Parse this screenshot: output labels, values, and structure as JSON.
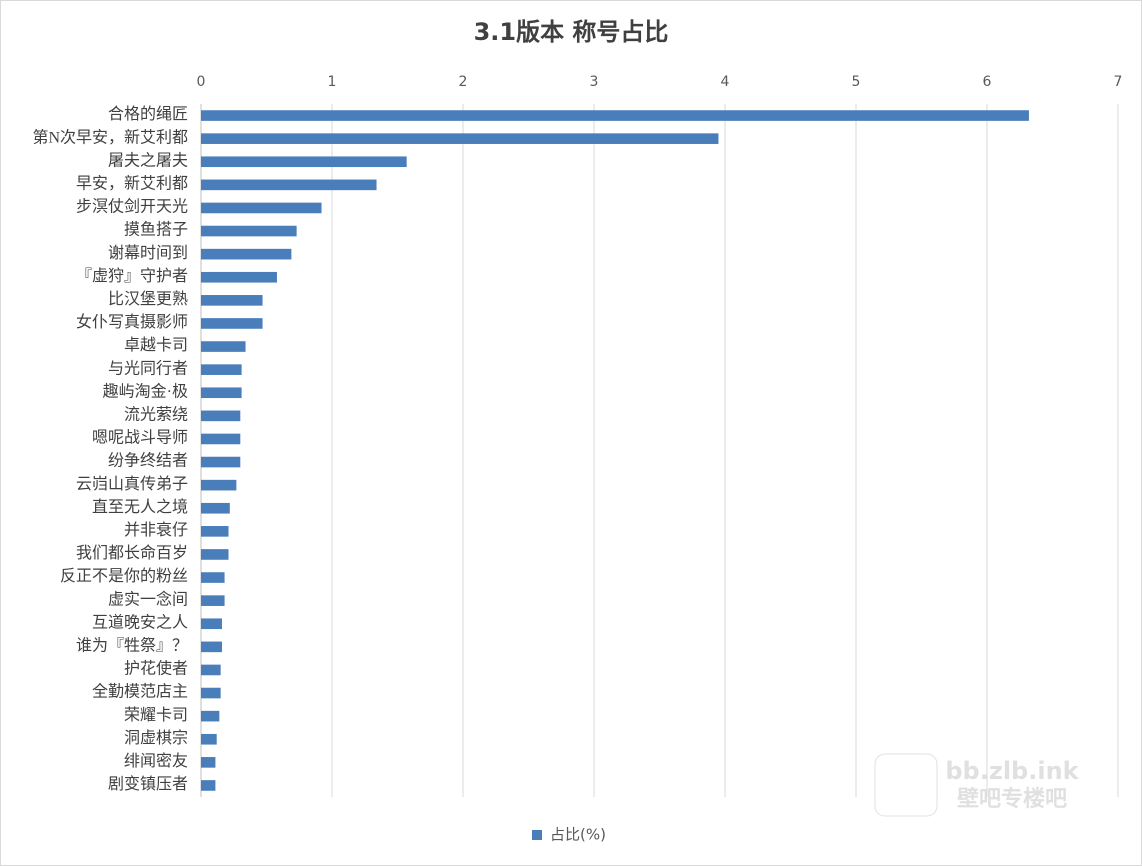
{
  "chart_data": {
    "type": "bar",
    "orientation": "horizontal",
    "title": "3.1版本 称号占比",
    "categories": [
      "合格的绳匠",
      "第N次早安，新艾利都",
      "屠夫之屠夫",
      "早安，新艾利都",
      "步溟仗剑开天光",
      "摸鱼搭子",
      "谢幕时间到",
      "『虚狩』守护者",
      "比汉堡更熟",
      "女仆写真摄影师",
      "卓越卡司",
      "与光同行者",
      "趣屿淘金·极",
      "流光萦绕",
      "嗯呢战斗导师",
      "纷争终结者",
      "云岿山真传弟子",
      "直至无人之境",
      "并非衰仔",
      "我们都长命百岁",
      "反正不是你的粉丝",
      "虚实一念间",
      "互道晚安之人",
      "谁为『牲祭』？",
      "护花使者",
      "全勤模范店主",
      "荣耀卡司",
      "洞虚棋宗",
      "绯闻密友",
      "剧变镇压者"
    ],
    "series": [
      {
        "name": "占比(%)",
        "color": "#4a7ebb",
        "values": [
          6.32,
          3.95,
          1.57,
          1.34,
          0.92,
          0.73,
          0.69,
          0.58,
          0.47,
          0.47,
          0.34,
          0.31,
          0.31,
          0.3,
          0.3,
          0.3,
          0.27,
          0.22,
          0.21,
          0.21,
          0.18,
          0.18,
          0.16,
          0.16,
          0.15,
          0.15,
          0.14,
          0.12,
          0.11,
          0.11
        ]
      }
    ],
    "xlim": [
      0,
      7
    ],
    "xticks": [
      0,
      1,
      2,
      3,
      4,
      5,
      6,
      7
    ],
    "grid": true,
    "legend": "bottom",
    "watermark": [
      "bb.zlb.ink",
      "壁吧专楼吧"
    ]
  }
}
